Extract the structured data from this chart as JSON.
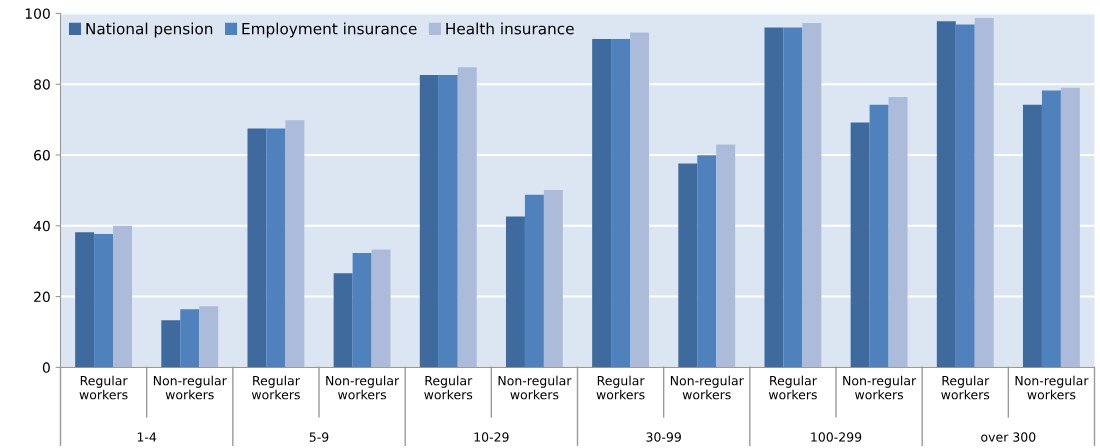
{
  "chart_data": {
    "type": "bar",
    "categories": [
      "Regular\nworkers",
      "Non-regular\nworkers",
      "Regular\nworkers",
      "Non-regular\nworkers",
      "Regular\nworkers",
      "Non-regular\nworkers",
      "Regular\nworkers",
      "Non-regular\nworkers",
      "Regular\nworkers",
      "Non-regular\nworkers",
      "Regular\nworkers",
      "Non-regular\nworkers"
    ],
    "series": [
      {
        "name": "National pension",
        "color": "#3f6a9e",
        "values": [
          38.2,
          13.3,
          67.5,
          26.6,
          82.6,
          42.6,
          92.8,
          57.6,
          96.0,
          69.2,
          97.8,
          74.2
        ]
      },
      {
        "name": "Employment insurance",
        "color": "#4f81bd",
        "values": [
          37.7,
          16.4,
          67.5,
          32.3,
          82.6,
          48.8,
          92.8,
          59.9,
          96.0,
          74.2,
          96.9,
          78.2
        ]
      },
      {
        "name": "Health insurance",
        "color": "#abbbd9",
        "values": [
          40.0,
          17.3,
          69.8,
          33.3,
          84.8,
          50.1,
          94.6,
          63.0,
          97.3,
          76.4,
          98.7,
          79.0
        ]
      }
    ],
    "annotations": [
      "1-4",
      "5-9",
      "10-29",
      "30-99",
      "100-299",
      "over 300"
    ],
    "ylim": [
      0,
      100
    ],
    "yticks": [
      0,
      20,
      40,
      60,
      80,
      100
    ],
    "grid": "y",
    "legend": "top left"
  }
}
